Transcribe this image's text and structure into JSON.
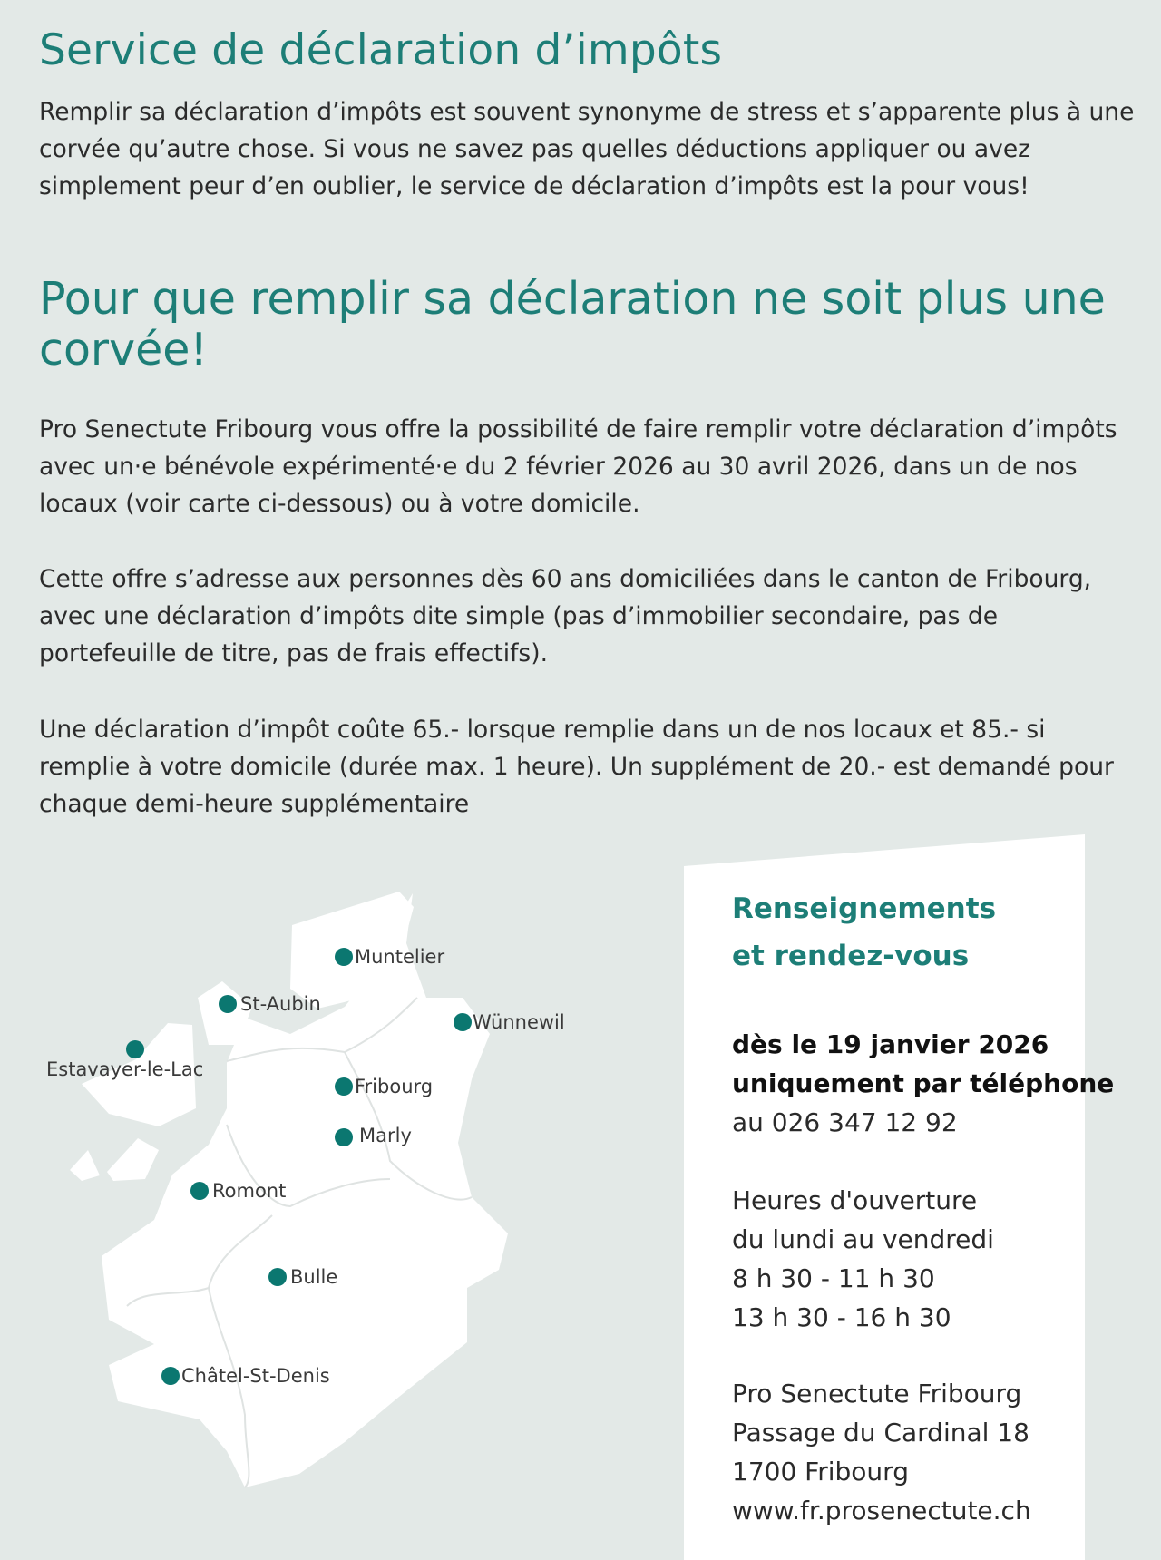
{
  "title": "Service de déclaration d’impôts",
  "intro": [
    "Remplir sa déclaration d’impôts est souvent synonyme de stress et s’apparente plus à une",
    "corvée qu’autre chose. Si vous ne savez pas quelles déductions appliquer ou avez",
    "simplement peur d’en oublier, le service de déclaration d’impôts est la pour vous!"
  ],
  "subtitle": "Pour que remplir sa déclaration ne soit plus une corvée!",
  "paragraphs": [
    [
      "Pro Senectute Fribourg vous offre la possibilité de faire remplir votre déclaration d’impôts",
      "avec un·e bénévole expérimenté·e du 2 février 2026 au 30 avril 2026, dans un de nos",
      "locaux (voir carte ci-dessous) ou à votre domicile."
    ],
    [
      "Cette offre s’adresse aux personnes dès 60 ans domiciliées dans le canton de Fribourg,",
      "avec une déclaration d’impôts dite simple (pas d’immobilier secondaire, pas de",
      "portefeuille de titre, pas de frais effectifs)."
    ],
    [
      "Une déclaration d’impôt coûte 65.- lorsque remplie dans un de nos locaux et 85.- si",
      "remplie à votre domicile (durée max. 1 heure). Un supplément de 20.- est demandé pour",
      "chaque demi-heure supplémentaire"
    ]
  ],
  "map": {
    "locations": [
      "Muntelier",
      "St-Aubin",
      "Wünnewil",
      "Estavayer-le-Lac",
      "Fribourg",
      "Marly",
      "Romont",
      "Bulle",
      "Châtel-St-Denis"
    ],
    "marker_color": "#0b7770"
  },
  "contact": {
    "heading": [
      "Renseignements",
      "et rendez-vous"
    ],
    "date": "dès le 19 janvier 2026",
    "method": "uniquement par téléphone",
    "phone": "au 026 347 12 92",
    "hours": [
      "Heures d'ouverture",
      "du lundi au vendredi",
      "8 h 30 - 11 h 30",
      "13 h 30 - 16 h 30"
    ],
    "address": [
      "Pro Senectute Fribourg",
      "Passage du Cardinal 18",
      "1700 Fribourg"
    ],
    "website": "www.fr.prosenectute.ch"
  },
  "colors": {
    "accent": "#1d7e77",
    "background": "#e3e9e7"
  }
}
